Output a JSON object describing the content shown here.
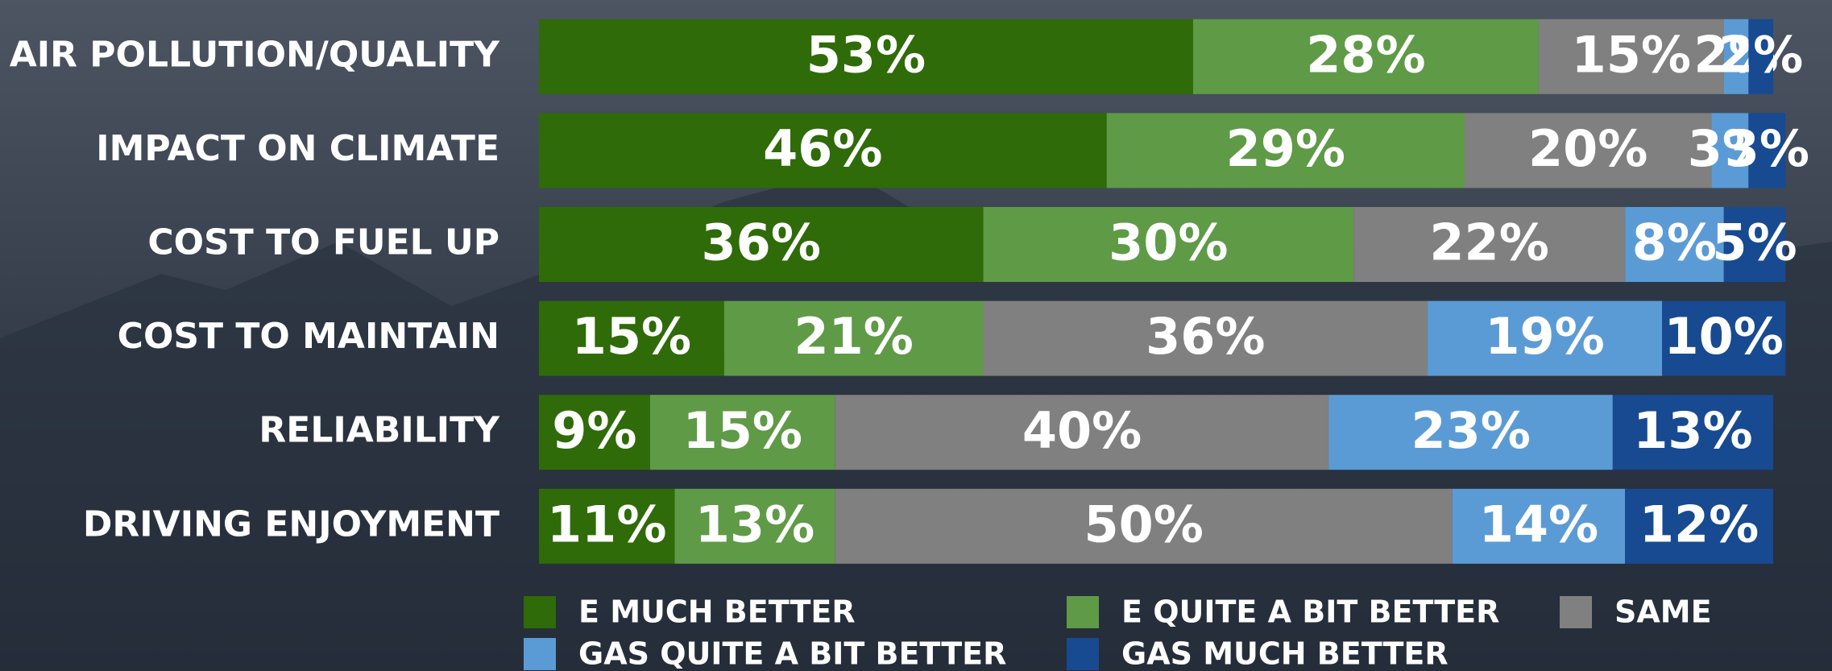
{
  "chart_data": {
    "type": "stacked-barh",
    "categories": [
      "AIR POLLUTION/QUALITY",
      "IMPACT ON CLIMATE",
      "COST TO FUEL UP",
      "COST TO MAINTAIN",
      "RELIABILITY",
      "DRIVING ENJOYMENT"
    ],
    "series": [
      {
        "name": "E MUCH BETTER",
        "color": "#2f6b08",
        "values": [
          53,
          46,
          36,
          15,
          9,
          11
        ],
        "value_labels": [
          "53%",
          "46%",
          "36%",
          "15%",
          "9%",
          "11%"
        ]
      },
      {
        "name": "E QUITE A BIT BETTER",
        "color": "#5f9a47",
        "values": [
          28,
          29,
          30,
          21,
          15,
          13
        ],
        "value_labels": [
          "28%",
          "29%",
          "30%",
          "21%",
          "15%",
          "13%"
        ]
      },
      {
        "name": "SAME",
        "color": "#808080",
        "values": [
          15,
          20,
          22,
          36,
          40,
          50
        ],
        "value_labels": [
          "15%",
          "20%",
          "22%",
          "36%",
          "40%",
          "50%"
        ]
      },
      {
        "name": "GAS QUITE A BIT BETTER",
        "color": "#5b9bd5",
        "values": [
          2,
          3,
          8,
          19,
          23,
          14
        ],
        "value_labels": [
          "2%",
          "3%",
          "8%",
          "19%",
          "23%",
          "14%"
        ]
      },
      {
        "name": "GAS MUCH BETTER",
        "color": "#174a91",
        "values": [
          2,
          3,
          5,
          10,
          13,
          12
        ],
        "value_labels": [
          "2%",
          "3%",
          "5%",
          "10%",
          "13%",
          "12%"
        ]
      }
    ],
    "xlim": [
      0,
      100
    ],
    "legend": "bottom"
  }
}
